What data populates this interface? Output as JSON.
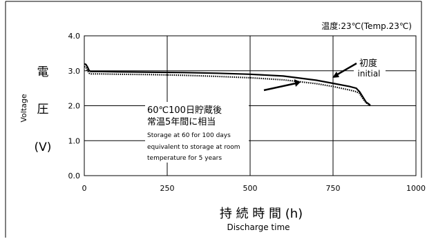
{
  "chart_data": {
    "type": "line",
    "temperature_note": "温度:23℃(Temp.23℃)",
    "ylabel_jp": [
      "電",
      "圧",
      "(V)"
    ],
    "ylabel_en": "Voltage",
    "xlabel_jp": "持 続 時 間 (h)",
    "xlabel_en": "Discharge time",
    "xlim": [
      0,
      1000
    ],
    "ylim": [
      0,
      4
    ],
    "xticks": [
      0,
      250,
      500,
      750,
      1000
    ],
    "yticks": [
      0.0,
      1.0,
      2.0,
      3.0,
      4.0
    ],
    "ytick_labels": [
      "0.0",
      "1.0",
      "2.0",
      "3.0",
      "4.0"
    ],
    "grid": true,
    "series": [
      {
        "name": "初度 initial",
        "style": "solid",
        "x": [
          0,
          5,
          10,
          15,
          20,
          30,
          50,
          100,
          200,
          300,
          400,
          500,
          600,
          700,
          750,
          800,
          820,
          830,
          840,
          850,
          858,
          862
        ],
        "y": [
          3.2,
          3.18,
          3.1,
          3.0,
          2.98,
          2.98,
          2.98,
          2.97,
          2.96,
          2.95,
          2.93,
          2.9,
          2.85,
          2.73,
          2.64,
          2.55,
          2.5,
          2.4,
          2.25,
          2.1,
          2.05,
          2.02
        ]
      },
      {
        "name": "60℃100日貯蔵後 常温5年間に相当",
        "style": "dotted",
        "x": [
          0,
          5,
          10,
          15,
          20,
          30,
          50,
          100,
          200,
          300,
          400,
          500,
          600,
          700,
          750,
          800,
          820,
          830,
          840,
          850,
          858,
          862
        ],
        "y": [
          3.12,
          3.1,
          3.0,
          2.93,
          2.91,
          2.91,
          2.91,
          2.9,
          2.89,
          2.87,
          2.84,
          2.8,
          2.74,
          2.63,
          2.55,
          2.45,
          2.4,
          2.35,
          2.2,
          2.08,
          2.03,
          2.0
        ]
      }
    ],
    "annotations": {
      "initial_jp": "初度",
      "initial_en": "initial",
      "storage_jp_1": "60℃100日貯蔵後",
      "storage_jp_2": "常温5年間に相当",
      "storage_en_1": "Storage at 60 for 100 days",
      "storage_en_2": "equivalent to storage at room",
      "storage_en_3": "temperature for 5 years"
    }
  }
}
